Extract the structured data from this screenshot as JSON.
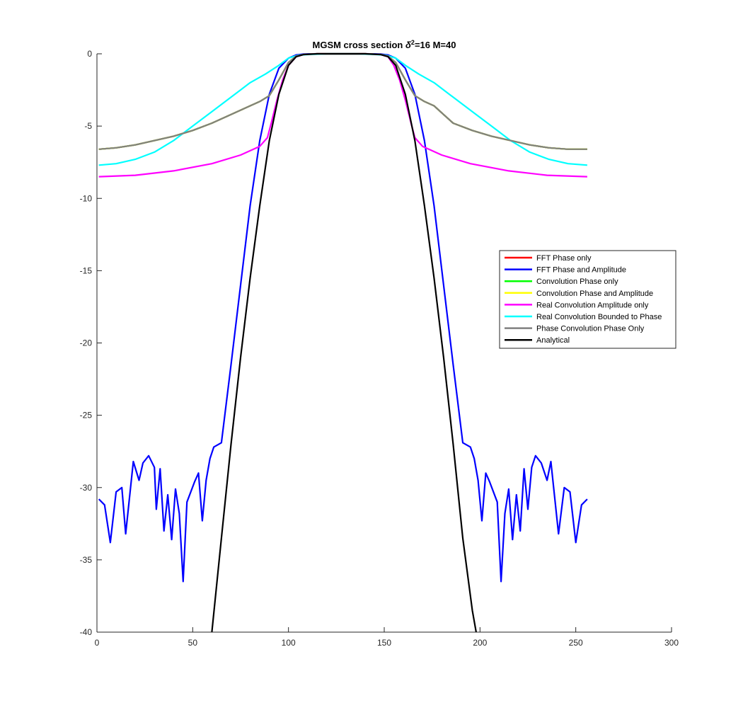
{
  "chart_data": {
    "type": "line",
    "title_main": "MGSM cross section ",
    "title_symbol": "δ",
    "title_sup": "2",
    "title_rest": "=16 M=40",
    "xlim": [
      0,
      300
    ],
    "ylim": [
      -40,
      0
    ],
    "xticks": [
      0,
      50,
      100,
      150,
      200,
      250,
      300
    ],
    "yticks": [
      0,
      -5,
      -10,
      -15,
      -20,
      -25,
      -30,
      -35,
      -40
    ],
    "xtick_labels": [
      "0",
      "50",
      "100",
      "150",
      "200",
      "250",
      "300"
    ],
    "ytick_labels": [
      "0",
      "-5",
      "-10",
      "-15",
      "-20",
      "-25",
      "-30",
      "-35",
      "-40"
    ],
    "grid": false,
    "legend_position": "right",
    "series": [
      {
        "name": "FFT Phase only",
        "color": "#ff0000",
        "x": [
          1,
          10,
          20,
          30,
          40,
          50,
          60,
          70,
          80,
          85,
          90,
          95,
          100,
          104,
          108,
          115,
          128,
          140,
          148,
          152,
          156,
          161,
          166,
          171,
          176,
          181,
          186,
          196,
          206,
          216,
          226,
          236,
          246,
          256
        ],
        "y": [
          -6.6,
          -6.5,
          -6.3,
          -6.0,
          -5.7,
          -5.3,
          -4.8,
          -4.2,
          -3.6,
          -3.3,
          -2.9,
          -1.8,
          -0.6,
          -0.15,
          -0.05,
          0,
          0,
          0,
          -0.05,
          -0.15,
          -0.6,
          -1.8,
          -2.9,
          -3.3,
          -3.6,
          -4.2,
          -4.8,
          -5.3,
          -5.7,
          -6.0,
          -6.3,
          -6.5,
          -6.6,
          -6.6
        ]
      },
      {
        "name": "FFT Phase and Amplitude",
        "color": "#0000ff",
        "x": [
          1,
          4,
          7,
          10,
          13,
          15,
          19,
          22,
          24,
          27,
          30,
          31,
          33,
          35,
          37,
          39,
          41,
          43,
          45,
          47,
          51,
          53,
          55,
          57,
          59,
          61,
          65,
          70,
          75,
          80,
          85,
          90,
          95,
          100,
          104,
          108,
          115,
          128,
          140,
          148,
          152,
          156,
          161,
          166,
          171,
          176,
          181,
          186,
          191,
          195,
          197,
          199,
          201,
          203,
          205,
          209,
          211,
          213,
          215,
          217,
          219,
          221,
          223,
          225,
          227,
          229,
          232,
          235,
          237,
          241,
          244,
          247,
          250,
          253,
          256
        ],
        "y": [
          -30.8,
          -31.2,
          -33.8,
          -30.3,
          -30.0,
          -33.2,
          -28.2,
          -29.5,
          -28.3,
          -27.8,
          -28.6,
          -31.5,
          -28.7,
          -33.0,
          -30.5,
          -33.6,
          -30.1,
          -31.8,
          -36.5,
          -31.0,
          -29.6,
          -29.0,
          -32.3,
          -29.5,
          -28.0,
          -27.2,
          -26.9,
          -21.5,
          -16.0,
          -10.5,
          -6.0,
          -2.8,
          -1.0,
          -0.3,
          -0.08,
          -0.02,
          0,
          0,
          0,
          -0.02,
          -0.08,
          -0.3,
          -1.0,
          -2.8,
          -6.0,
          -10.5,
          -16.0,
          -21.5,
          -26.9,
          -27.2,
          -28.0,
          -29.5,
          -32.3,
          -29.0,
          -29.6,
          -31.0,
          -36.5,
          -31.8,
          -30.1,
          -33.6,
          -30.5,
          -33.0,
          -28.7,
          -31.5,
          -28.6,
          -27.8,
          -28.3,
          -29.5,
          -28.2,
          -33.2,
          -30.0,
          -30.3,
          -33.8,
          -31.2,
          -30.8
        ]
      },
      {
        "name": "Convolution Phase only",
        "color": "#00ff00",
        "x": [
          1,
          10,
          20,
          30,
          40,
          50,
          60,
          70,
          80,
          85,
          90,
          95,
          100,
          104,
          108,
          115,
          128,
          140,
          148,
          152,
          156,
          161,
          166,
          171,
          176,
          181,
          186,
          196,
          206,
          216,
          226,
          236,
          246,
          256
        ],
        "y": [
          -6.6,
          -6.5,
          -6.3,
          -6.0,
          -5.7,
          -5.3,
          -4.8,
          -4.2,
          -3.6,
          -3.3,
          -2.9,
          -1.8,
          -0.6,
          -0.15,
          -0.05,
          0,
          0,
          0,
          -0.05,
          -0.15,
          -0.6,
          -1.8,
          -2.9,
          -3.3,
          -3.6,
          -4.2,
          -4.8,
          -5.3,
          -5.7,
          -6.0,
          -6.3,
          -6.5,
          -6.6,
          -6.6
        ]
      },
      {
        "name": "Convolution Phase and Amplitude",
        "color": "#ffff00",
        "x": [
          1,
          10,
          20,
          30,
          40,
          50,
          60,
          70,
          80,
          85,
          90,
          95,
          100,
          104,
          108,
          115,
          128,
          140,
          148,
          152,
          156,
          161,
          166,
          171,
          176,
          181,
          186,
          196,
          206,
          216,
          226,
          236,
          246,
          256
        ],
        "y": [
          -6.6,
          -6.5,
          -6.3,
          -6.0,
          -5.7,
          -5.3,
          -4.8,
          -4.2,
          -3.6,
          -3.3,
          -2.9,
          -1.8,
          -0.6,
          -0.15,
          -0.05,
          0,
          0,
          0,
          -0.05,
          -0.15,
          -0.6,
          -1.8,
          -2.9,
          -3.3,
          -3.6,
          -4.2,
          -4.8,
          -5.3,
          -5.7,
          -6.0,
          -6.3,
          -6.5,
          -6.6,
          -6.6
        ]
      },
      {
        "name": "Real Convolution Amplitude only",
        "color": "#ff00ff",
        "x": [
          1,
          20,
          40,
          60,
          75,
          85,
          89,
          91,
          94,
          97,
          100,
          104,
          108,
          115,
          128,
          140,
          148,
          152,
          155,
          158,
          161,
          164,
          166,
          170,
          180,
          195,
          215,
          235,
          256
        ],
        "y": [
          -8.5,
          -8.4,
          -8.1,
          -7.6,
          -7.0,
          -6.4,
          -5.8,
          -4.8,
          -3.2,
          -1.8,
          -0.8,
          -0.2,
          -0.05,
          0,
          0,
          0,
          -0.05,
          -0.2,
          -0.8,
          -1.8,
          -3.2,
          -4.8,
          -5.8,
          -6.4,
          -7.0,
          -7.6,
          -8.1,
          -8.4,
          -8.5
        ]
      },
      {
        "name": "Real Convolution Bounded to Phase",
        "color": "#00ffff",
        "x": [
          1,
          10,
          20,
          30,
          40,
          50,
          60,
          70,
          80,
          88,
          95,
          100,
          105,
          110,
          120,
          128,
          136,
          146,
          151,
          156,
          161,
          168,
          176,
          186,
          196,
          206,
          216,
          226,
          236,
          246,
          256
        ],
        "y": [
          -7.7,
          -7.6,
          -7.3,
          -6.8,
          -6.0,
          -5.0,
          -4.0,
          -3.0,
          -2.0,
          -1.4,
          -0.8,
          -0.3,
          -0.1,
          -0.05,
          0,
          0,
          0,
          -0.05,
          -0.1,
          -0.3,
          -0.8,
          -1.4,
          -2.0,
          -3.0,
          -4.0,
          -5.0,
          -6.0,
          -6.8,
          -7.3,
          -7.6,
          -7.7
        ]
      },
      {
        "name": "Phase Convolution Phase Only",
        "color": "#808080",
        "x": [
          1,
          10,
          20,
          30,
          40,
          50,
          60,
          70,
          80,
          85,
          90,
          95,
          100,
          104,
          108,
          115,
          128,
          140,
          148,
          152,
          156,
          161,
          166,
          171,
          176,
          181,
          186,
          196,
          206,
          216,
          226,
          236,
          246,
          256
        ],
        "y": [
          -6.6,
          -6.5,
          -6.3,
          -6.0,
          -5.7,
          -5.3,
          -4.8,
          -4.2,
          -3.6,
          -3.3,
          -2.9,
          -1.8,
          -0.6,
          -0.15,
          -0.05,
          0,
          0,
          0,
          -0.05,
          -0.15,
          -0.6,
          -1.8,
          -2.9,
          -3.3,
          -3.6,
          -4.2,
          -4.8,
          -5.3,
          -5.7,
          -6.0,
          -6.3,
          -6.5,
          -6.6,
          -6.6
        ]
      },
      {
        "name": "Analytical",
        "color": "#000000",
        "x": [
          60,
          65,
          70,
          75,
          80,
          85,
          90,
          95,
          100,
          104,
          108,
          115,
          128,
          140,
          148,
          152,
          156,
          161,
          166,
          171,
          176,
          181,
          186,
          191,
          196,
          198
        ],
        "y": [
          -40,
          -33.5,
          -27.0,
          -21.0,
          -15.5,
          -10.5,
          -6.0,
          -2.8,
          -0.8,
          -0.2,
          -0.05,
          0,
          0,
          0,
          -0.05,
          -0.2,
          -0.8,
          -2.8,
          -6.0,
          -10.5,
          -15.5,
          -21.0,
          -27.0,
          -33.5,
          -38.5,
          -40
        ]
      }
    ]
  }
}
